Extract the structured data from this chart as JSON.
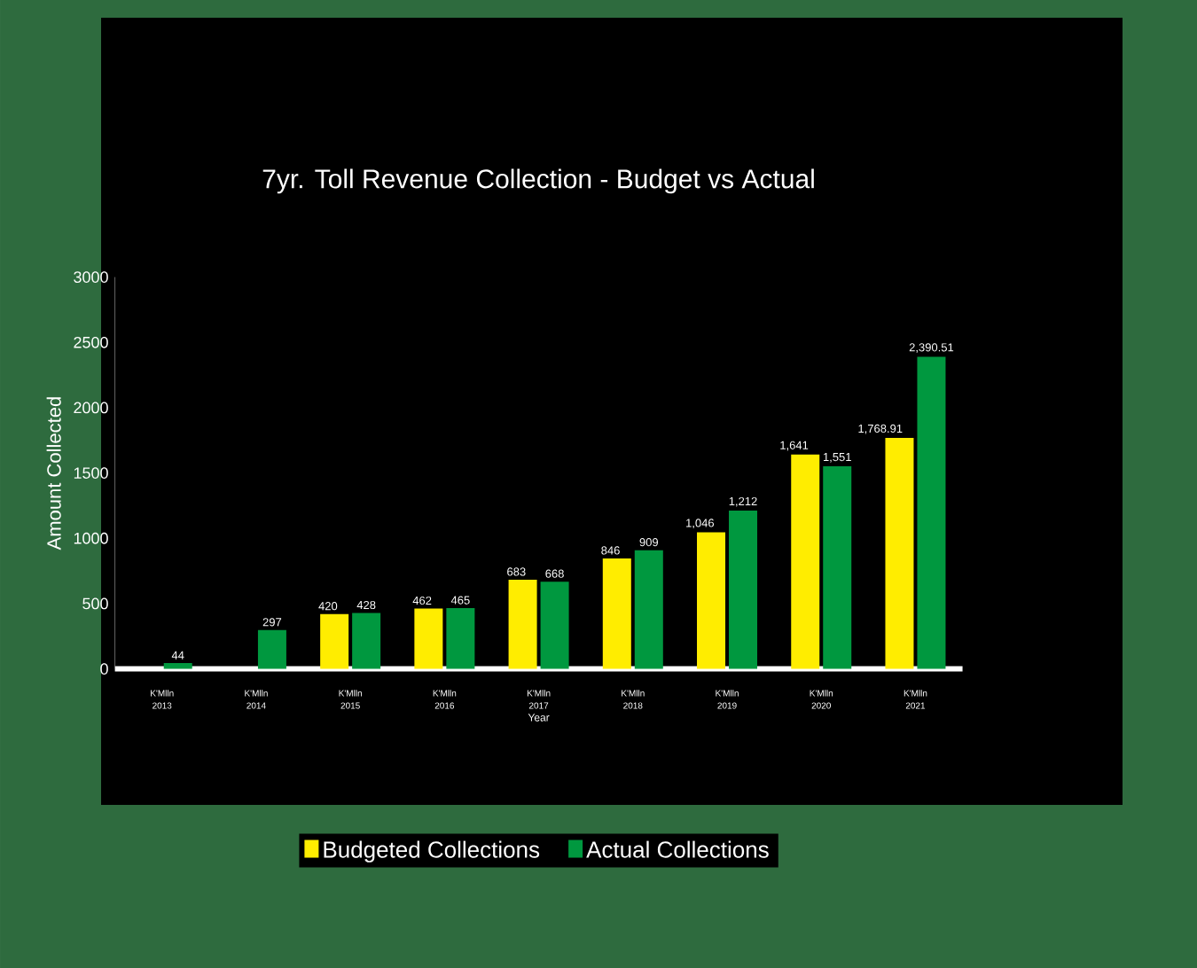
{
  "chart_data": {
    "type": "bar",
    "title": "7yr. Toll Revenue Collection - Budget vs Actual",
    "xlabel": "Year",
    "ylabel": "Amount Collected",
    "categories": [
      "K'Mlln 2013",
      "K'Mlln 2014",
      "K'Mlln 2015",
      "K'Mlln 2016",
      "K'Mlln 2017",
      "K'Mlln 2018",
      "K'Mlln 2019",
      "K'Mlln 2020",
      "K'Mlln 2021"
    ],
    "series": [
      {
        "name": "Budgeted Collections",
        "color": "#ffed00",
        "values": [
          null,
          null,
          420,
          462,
          683,
          846,
          1046,
          1641,
          1768.91
        ],
        "value_labels": [
          null,
          null,
          "420",
          "462",
          "683",
          "846",
          "1,046",
          "1,641",
          "1,768.91"
        ]
      },
      {
        "name": "Actual Collections",
        "color": "#00983f",
        "values": [
          44,
          297,
          428,
          465,
          668,
          909,
          1212,
          1551,
          2390.51
        ],
        "value_labels": [
          "44",
          "297",
          "428",
          "465",
          "668",
          "909",
          "1,212",
          "1,551",
          "2,390.51"
        ]
      }
    ],
    "ylim": [
      0,
      3000
    ],
    "yticks": [
      0,
      500,
      1000,
      1500,
      2000,
      2500,
      3000
    ],
    "grid": false,
    "legend": "bottom"
  }
}
